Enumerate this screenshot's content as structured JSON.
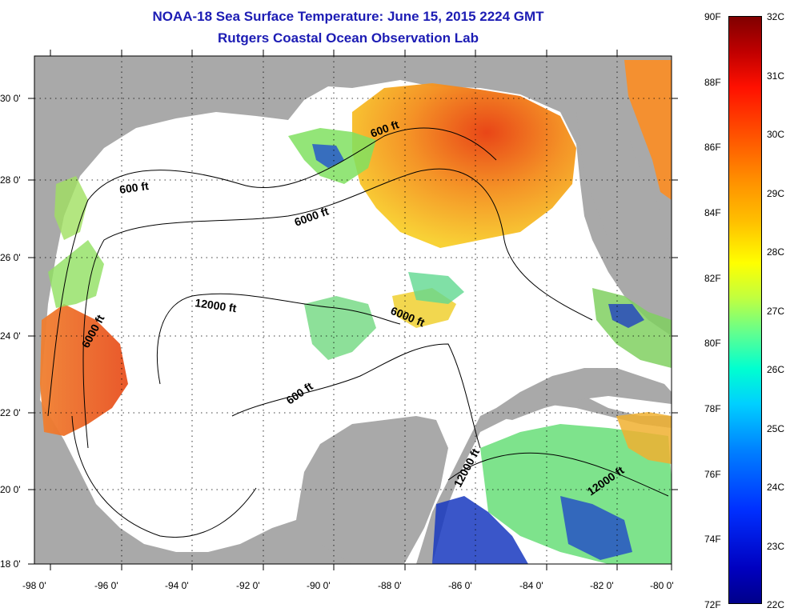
{
  "title_line1": "NOAA-18 Sea Surface Temperature:  June 15, 2015 2224 GMT",
  "title_line2": "Rutgers Coastal Ocean Observation Lab",
  "lon_ticks": [
    "-98 0'",
    "-96 0'",
    "-94 0'",
    "-92 0'",
    "-90 0'",
    "-88 0'",
    "-86 0'",
    "-84 0'",
    "-82 0'",
    "-80 0'"
  ],
  "lat_ticks": [
    "30 0'",
    "28 0'",
    "26 0'",
    "24 0'",
    "22 0'",
    "20 0'",
    "18 0'"
  ],
  "contour_labels": [
    {
      "text": "600 ft"
    },
    {
      "text": "600 ft"
    },
    {
      "text": "6000 ft"
    },
    {
      "text": "12000 ft"
    },
    {
      "text": "6000 ft"
    },
    {
      "text": "6000 ft"
    },
    {
      "text": "600 ft"
    },
    {
      "text": "12000 ft"
    },
    {
      "text": "12000 ft"
    }
  ],
  "colorbar": {
    "fahrenheit": [
      "90F",
      "88F",
      "86F",
      "84F",
      "82F",
      "80F",
      "78F",
      "76F",
      "74F",
      "72F"
    ],
    "celsius": [
      "32C",
      "31C",
      "30C",
      "29C",
      "28C",
      "27C",
      "26C",
      "25C",
      "24C",
      "23C",
      "22C"
    ]
  },
  "colors": {
    "land": "#a9a9a9",
    "no_data": "#ffffff",
    "title": "#1c1cb4",
    "warm": "#f07020",
    "hot": "#e03010",
    "mid": "#f8d820",
    "cool": "#50e080",
    "cold": "#1030c0"
  }
}
